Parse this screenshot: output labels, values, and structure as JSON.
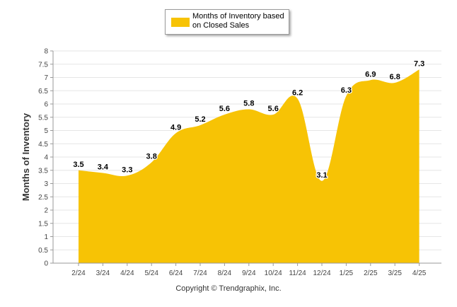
{
  "chart_data": {
    "type": "area",
    "categories": [
      "2/24",
      "3/24",
      "4/24",
      "5/24",
      "6/24",
      "7/24",
      "8/24",
      "9/24",
      "10/24",
      "11/24",
      "12/24",
      "1/25",
      "2/25",
      "3/25",
      "4/25"
    ],
    "series": [
      {
        "name": "Months of Inventory based on Closed Sales",
        "values": [
          3.5,
          3.4,
          3.3,
          3.8,
          4.9,
          5.2,
          5.6,
          5.8,
          5.6,
          6.2,
          3.1,
          6.3,
          6.9,
          6.8,
          7.3
        ]
      }
    ],
    "title": "",
    "xlabel": "",
    "ylabel": "Months of Inventory",
    "ylim": [
      0,
      8
    ],
    "yticks": [
      "0",
      "0.5",
      "1",
      "1.5",
      "2",
      "2.5",
      "3",
      "3.5",
      "4",
      "4.5",
      "5",
      "5.5",
      "6",
      "6.5",
      "7",
      "7.5",
      "8"
    ],
    "grid": true,
    "legend_position": "top-center",
    "colors": {
      "fill": "#F7C305",
      "grid": "#e6e6e6",
      "axis": "#999999"
    }
  },
  "legend": {
    "label": "Months of Inventory based on Closed Sales"
  },
  "footer": {
    "copyright": "Copyright © Trendgraphix, Inc."
  }
}
